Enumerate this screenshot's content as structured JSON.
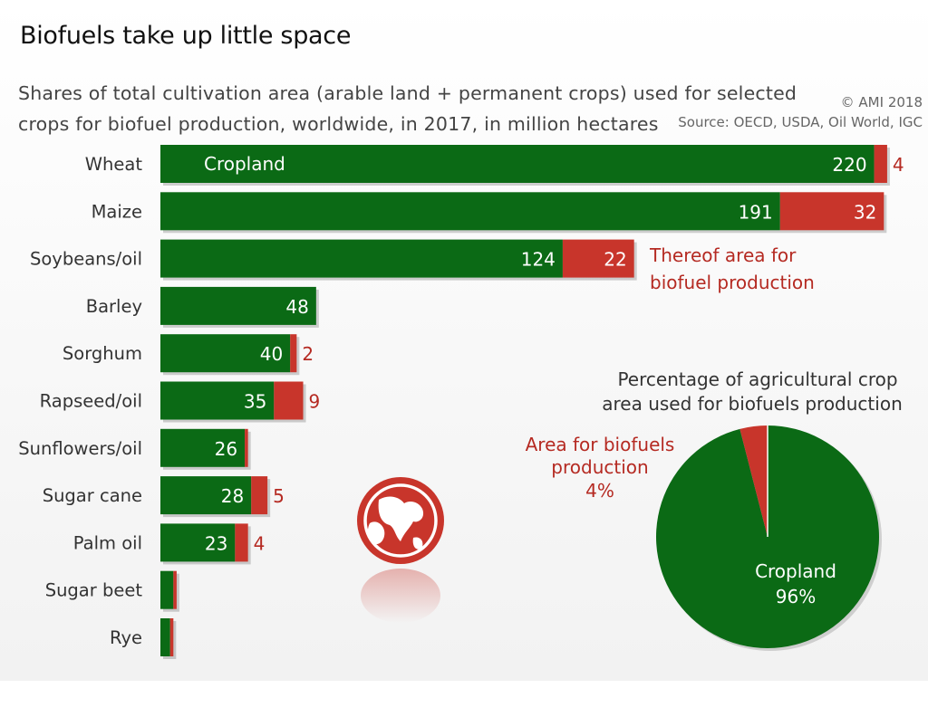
{
  "title": "Biofuels take up little space",
  "subtitle": "Shares of total cultivation area (arable land + permanent crops) used for selected crops for biofuel production, worldwide, in 2017, in million hectares",
  "copyright": "© AMI 2018",
  "source": "Source: OECD, USDA, Oil World, IGC",
  "colors": {
    "cropland": "#0b6a15",
    "biofuel": "#c8352b",
    "label_red": "#b52a22",
    "text": "#222222"
  },
  "icon": "globe-icon",
  "chart_data": [
    {
      "type": "bar",
      "orientation": "horizontal",
      "stacked": true,
      "categories": [
        "Wheat",
        "Maize",
        "Soybeans/oil",
        "Barley",
        "Sorghum",
        "Rapseed/oil",
        "Sunflowers/oil",
        "Sugar cane",
        "Palm oil",
        "Sugar beet",
        "Rye"
      ],
      "series": [
        {
          "name": "Cropland",
          "values": [
            220,
            191,
            124,
            48,
            40,
            35,
            26,
            28,
            23,
            4,
            3
          ],
          "labels": [
            "220",
            "191",
            "124",
            "48",
            "40",
            "35",
            "26",
            "28",
            "23",
            "",
            ""
          ],
          "color": "#0b6a15"
        },
        {
          "name": "Thereof area for biofuel production",
          "values": [
            4,
            32,
            22,
            0,
            2,
            9,
            1,
            5,
            4,
            1,
            1
          ],
          "labels": [
            "4",
            "32",
            "22",
            "",
            "2",
            "9",
            "",
            "5",
            "4",
            "",
            ""
          ],
          "color": "#c8352b"
        }
      ],
      "legend": {
        "cropland": "Cropland",
        "biofuel": "Thereof area for biofuel production"
      }
    },
    {
      "type": "pie",
      "title": "Percentage of agricultural crop area used for biofuels production",
      "slices": [
        {
          "label": "Cropland",
          "value": 96,
          "value_label": "96%",
          "color": "#0b6a15"
        },
        {
          "label": "Area for biofuels production",
          "value": 4,
          "value_label": "4%",
          "color": "#c8352b"
        }
      ]
    }
  ]
}
